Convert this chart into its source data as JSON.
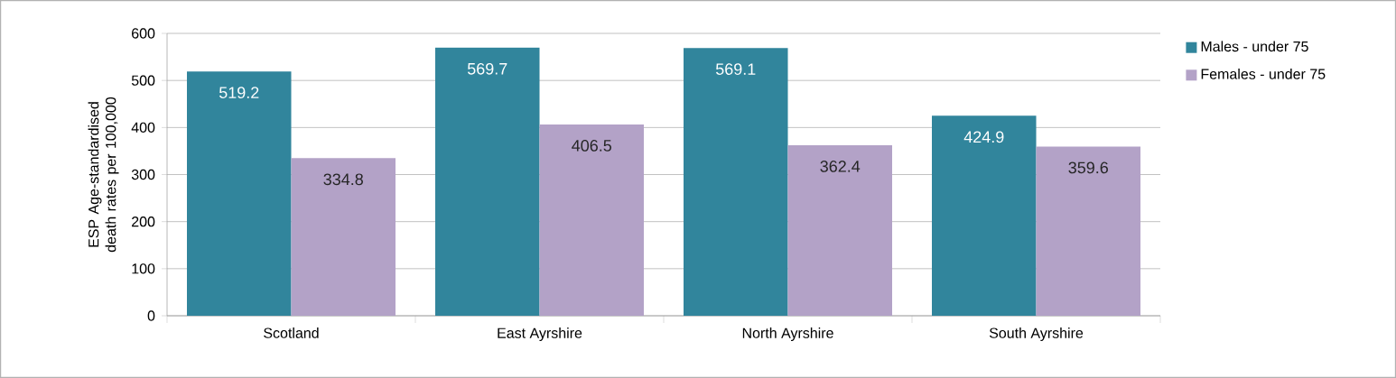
{
  "chart_data": {
    "type": "bar",
    "ylabel": "ESP Age-standardised death rates per 100,000",
    "categories": [
      "Scotland",
      "East Ayrshire",
      "North Ayrshire",
      "South Ayrshire"
    ],
    "series": [
      {
        "name": "Males - under 75",
        "color": "#31859c",
        "values": [
          519.2,
          569.7,
          569.1,
          424.9
        ]
      },
      {
        "name": "Females - under 75",
        "color": "#b3a2c7",
        "values": [
          334.8,
          406.5,
          362.4,
          359.6
        ]
      }
    ],
    "ylim": [
      0,
      600
    ],
    "yticks": [
      0,
      100,
      200,
      300,
      400,
      500,
      600
    ],
    "grid": "y",
    "legend": "right",
    "data_labels": true
  }
}
